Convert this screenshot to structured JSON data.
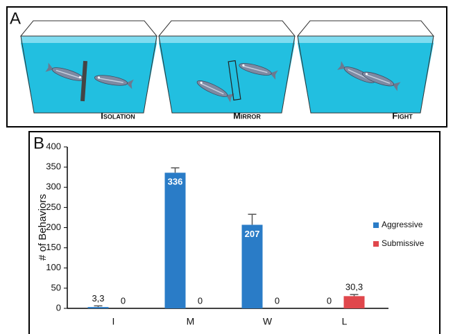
{
  "panel_a": {
    "label": "A",
    "conditions": [
      "Isolation",
      "Mirror",
      "Fight"
    ]
  },
  "chart_data": {
    "type": "bar",
    "panel_label": "B",
    "ylabel": "# of Behaviors",
    "categories": [
      "I",
      "M",
      "W",
      "L"
    ],
    "series": [
      {
        "name": "Aggressive",
        "color": "#2a7cc7",
        "values": [
          3.3,
          336,
          207,
          0
        ],
        "value_labels": [
          "3,3",
          "336",
          "207",
          "0"
        ],
        "errors": [
          3,
          12,
          26,
          null
        ]
      },
      {
        "name": "Submissive",
        "color": "#e0474c",
        "values": [
          0,
          0,
          0,
          30.3
        ],
        "value_labels": [
          "0",
          "0",
          "0",
          "30,3"
        ],
        "errors": [
          null,
          null,
          null,
          4
        ]
      }
    ],
    "ylim": [
      0,
      400
    ],
    "yticks": [
      0,
      50,
      100,
      150,
      200,
      250,
      300,
      350,
      400
    ],
    "legend": "right"
  }
}
